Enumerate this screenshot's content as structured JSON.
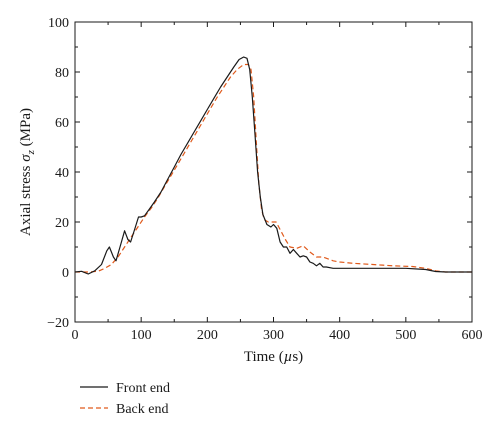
{
  "chart_data": {
    "type": "line",
    "title": "",
    "xlabel": "Time (µs)",
    "xlabel_parts": {
      "before": "Time (",
      "mu": "µ",
      "after": "s)"
    },
    "ylabel": "Axial stress σz (MPa)",
    "ylabel_parts": {
      "before": "Axial stress ",
      "sigma": "σ",
      "sub": "z",
      "after": " (MPa)"
    },
    "xlim": [
      0,
      600
    ],
    "ylim": [
      -20,
      100
    ],
    "xticks": [
      "0",
      "100",
      "200",
      "300",
      "400",
      "500",
      "600"
    ],
    "yticks": [
      "−20",
      "0",
      "20",
      "40",
      "60",
      "80",
      "100"
    ],
    "grid": false,
    "legend": "bottom-left",
    "series": [
      {
        "name": "Front end",
        "color": "#1a1a1a",
        "dash": "solid",
        "points": [
          [
            0,
            0
          ],
          [
            10,
            0.3
          ],
          [
            20,
            -0.8
          ],
          [
            30,
            0.5
          ],
          [
            40,
            3
          ],
          [
            48,
            8.5
          ],
          [
            52,
            10
          ],
          [
            58,
            6
          ],
          [
            62,
            4.5
          ],
          [
            68,
            10
          ],
          [
            75,
            16.5
          ],
          [
            80,
            13
          ],
          [
            84,
            12
          ],
          [
            90,
            17
          ],
          [
            96,
            22
          ],
          [
            100,
            22
          ],
          [
            105,
            22.5
          ],
          [
            112,
            25
          ],
          [
            120,
            28
          ],
          [
            130,
            32
          ],
          [
            140,
            37
          ],
          [
            150,
            42
          ],
          [
            160,
            47
          ],
          [
            170,
            51.5
          ],
          [
            180,
            56
          ],
          [
            190,
            60.5
          ],
          [
            200,
            65
          ],
          [
            210,
            69.5
          ],
          [
            220,
            74
          ],
          [
            230,
            78
          ],
          [
            240,
            82
          ],
          [
            248,
            85
          ],
          [
            255,
            86
          ],
          [
            260,
            85.5
          ],
          [
            264,
            81
          ],
          [
            268,
            70
          ],
          [
            272,
            55
          ],
          [
            276,
            40
          ],
          [
            280,
            30
          ],
          [
            284,
            23
          ],
          [
            290,
            19
          ],
          [
            296,
            18
          ],
          [
            300,
            19
          ],
          [
            305,
            17.5
          ],
          [
            310,
            12
          ],
          [
            315,
            10
          ],
          [
            320,
            10
          ],
          [
            325,
            7.5
          ],
          [
            330,
            9
          ],
          [
            335,
            7.5
          ],
          [
            340,
            6
          ],
          [
            345,
            6.5
          ],
          [
            350,
            6
          ],
          [
            355,
            4
          ],
          [
            360,
            3.5
          ],
          [
            365,
            2.5
          ],
          [
            370,
            3.5
          ],
          [
            375,
            2
          ],
          [
            380,
            2
          ],
          [
            390,
            1.5
          ],
          [
            400,
            1.5
          ],
          [
            450,
            1.5
          ],
          [
            500,
            1.5
          ],
          [
            530,
            1
          ],
          [
            545,
            0.2
          ],
          [
            560,
            0
          ],
          [
            580,
            0
          ],
          [
            600,
            0
          ]
        ]
      },
      {
        "name": "Back end",
        "color": "#e05a1c",
        "dash": "dashed",
        "points": [
          [
            0,
            0
          ],
          [
            20,
            0
          ],
          [
            35,
            0.3
          ],
          [
            45,
            1.5
          ],
          [
            55,
            3
          ],
          [
            65,
            6
          ],
          [
            75,
            10
          ],
          [
            85,
            14
          ],
          [
            95,
            18
          ],
          [
            105,
            22
          ],
          [
            115,
            25.5
          ],
          [
            125,
            29.5
          ],
          [
            135,
            34
          ],
          [
            145,
            38.5
          ],
          [
            155,
            43
          ],
          [
            165,
            47.5
          ],
          [
            175,
            52
          ],
          [
            185,
            56.5
          ],
          [
            195,
            61
          ],
          [
            205,
            65.5
          ],
          [
            215,
            70
          ],
          [
            225,
            74
          ],
          [
            235,
            78
          ],
          [
            245,
            81
          ],
          [
            255,
            83
          ],
          [
            262,
            83
          ],
          [
            266,
            81
          ],
          [
            270,
            70
          ],
          [
            274,
            52
          ],
          [
            278,
            35
          ],
          [
            282,
            25
          ],
          [
            286,
            21
          ],
          [
            292,
            20
          ],
          [
            298,
            20
          ],
          [
            304,
            20
          ],
          [
            310,
            17
          ],
          [
            318,
            13
          ],
          [
            325,
            10
          ],
          [
            335,
            9.5
          ],
          [
            345,
            10.5
          ],
          [
            355,
            8
          ],
          [
            365,
            6
          ],
          [
            375,
            6
          ],
          [
            390,
            4.5
          ],
          [
            400,
            4
          ],
          [
            420,
            3.5
          ],
          [
            450,
            3
          ],
          [
            480,
            2.5
          ],
          [
            510,
            2.2
          ],
          [
            530,
            1.5
          ],
          [
            545,
            0.5
          ],
          [
            560,
            0
          ],
          [
            600,
            0
          ]
        ]
      }
    ]
  }
}
